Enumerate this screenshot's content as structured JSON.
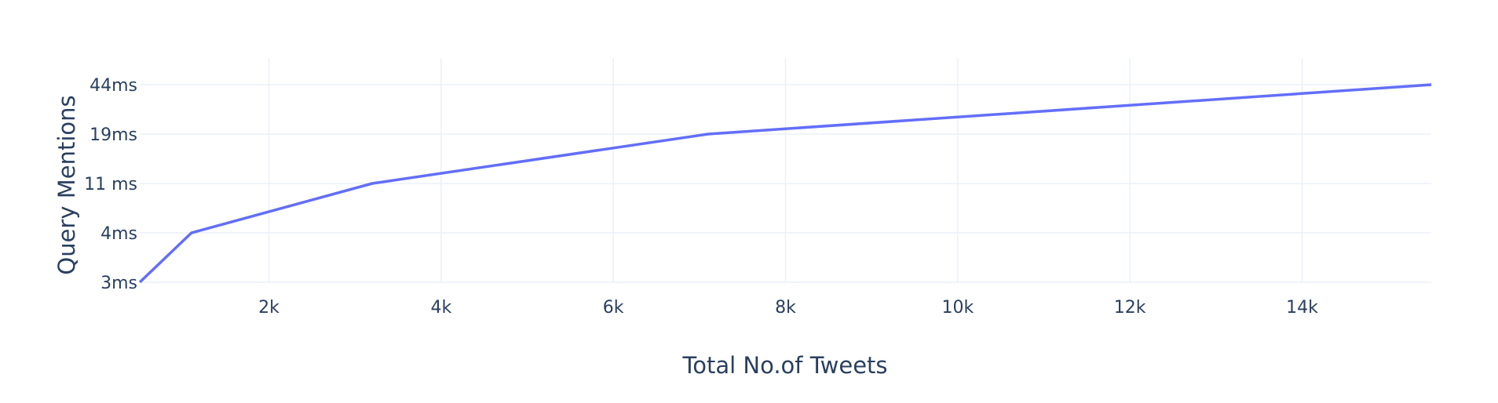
{
  "chart_data": {
    "type": "line",
    "title": "",
    "xlabel": "Total No.of Tweets",
    "ylabel": "Query Mentions",
    "x_ticks": [
      {
        "value": 2000,
        "label": "2k"
      },
      {
        "value": 4000,
        "label": "4k"
      },
      {
        "value": 6000,
        "label": "6k"
      },
      {
        "value": 8000,
        "label": "8k"
      },
      {
        "value": 10000,
        "label": "10k"
      },
      {
        "value": 12000,
        "label": "12k"
      },
      {
        "value": 14000,
        "label": "14k"
      }
    ],
    "xlim": [
      500,
      15500
    ],
    "y_axis_type": "category",
    "y_categories": [
      "3ms",
      "4ms",
      "11 ms",
      "19ms",
      "44ms"
    ],
    "grid": true,
    "series": [
      {
        "color": "#636efa",
        "x": [
          500,
          1100,
          3200,
          7100,
          15500
        ],
        "y": [
          "3ms",
          "4ms",
          "11 ms",
          "19ms",
          "44ms"
        ]
      }
    ]
  }
}
